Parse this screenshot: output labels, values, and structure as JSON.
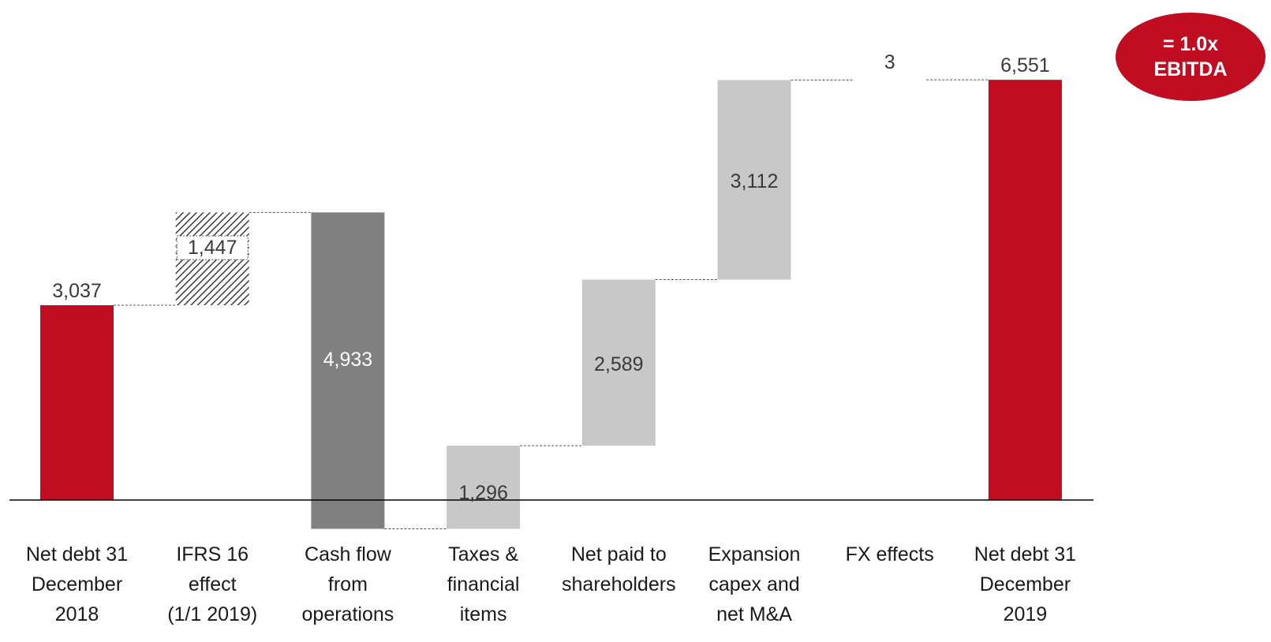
{
  "badge": {
    "line1": "= 1.0x",
    "line2": "EBITDA"
  },
  "colors": {
    "endpoint": "#c00d21",
    "hatched": "#3a3a3a",
    "cash_flow": "#808080",
    "deduction": "#c8c8c8",
    "axis": "#000000",
    "connector": "#555555",
    "badge": "#c00d21"
  },
  "chart_data": {
    "type": "waterfall",
    "ylim": [
      0,
      6600
    ],
    "categories": [
      [
        "Net debt 31",
        "December",
        "2018"
      ],
      [
        "IFRS 16",
        "effect",
        "(1/1 2019)"
      ],
      [
        "Cash flow",
        "from",
        "operations"
      ],
      [
        "Taxes &",
        "financial",
        "items"
      ],
      [
        "Net paid to",
        "shareholders"
      ],
      [
        "Expansion",
        "capex and",
        "net M&A"
      ],
      [
        "FX effects"
      ],
      [
        "Net debt 31",
        "December",
        "2019"
      ]
    ],
    "bars": [
      {
        "label": "3,037",
        "start": 0,
        "end": 3037,
        "style": "endpoint"
      },
      {
        "label": "1,447",
        "start": 3037,
        "end": 4484,
        "style": "hatched"
      },
      {
        "label": "4,933",
        "start": 4484,
        "end": -449,
        "style": "cash_flow"
      },
      {
        "label": "1,296",
        "start": -449,
        "end": 847,
        "style": "deduction"
      },
      {
        "label": "2,589",
        "start": 847,
        "end": 3436,
        "style": "deduction"
      },
      {
        "label": "3,112",
        "start": 3436,
        "end": 6548,
        "style": "deduction"
      },
      {
        "label": "3",
        "start": 6548,
        "end": 6551,
        "style": "none"
      },
      {
        "label": "6,551",
        "start": 0,
        "end": 6551,
        "style": "endpoint"
      }
    ]
  }
}
